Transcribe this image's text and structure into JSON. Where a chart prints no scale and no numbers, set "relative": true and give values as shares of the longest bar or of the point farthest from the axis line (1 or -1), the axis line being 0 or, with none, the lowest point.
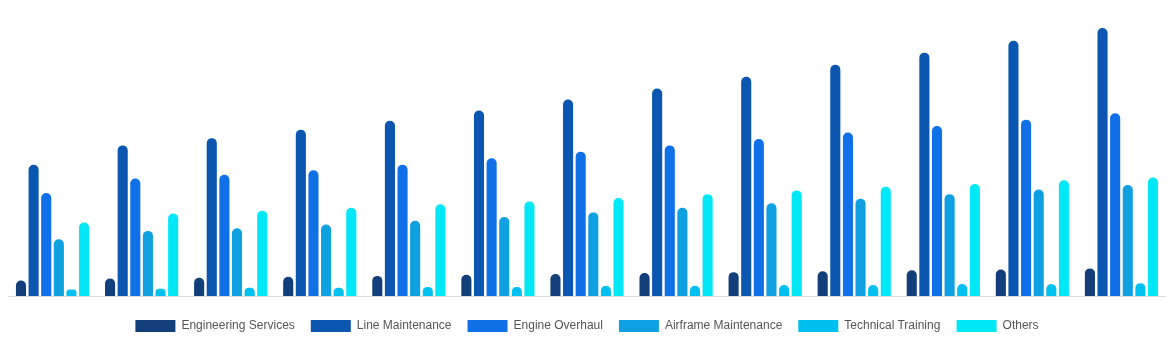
{
  "chart_data": {
    "type": "bar",
    "relative": true,
    "legend": "bottom",
    "categories": [
      null,
      null,
      null,
      null,
      null,
      null,
      null,
      null,
      null,
      null,
      null,
      null,
      null
    ],
    "series": [
      {
        "name": "Engineering Services",
        "color": "#123f7a",
        "values": [
          0.058,
          0.065,
          0.068,
          0.072,
          0.075,
          0.079,
          0.082,
          0.086,
          0.089,
          0.092,
          0.096,
          0.099,
          0.103
        ]
      },
      {
        "name": "Line Maintenance",
        "color": "#0a56b0",
        "values": [
          0.49,
          0.562,
          0.589,
          0.62,
          0.654,
          0.692,
          0.733,
          0.774,
          0.818,
          0.863,
          0.908,
          0.952,
          1
        ]
      },
      {
        "name": "Engine Overhaul",
        "color": "#1070e8",
        "values": [
          0.384,
          0.438,
          0.452,
          0.469,
          0.49,
          0.514,
          0.538,
          0.562,
          0.586,
          0.61,
          0.634,
          0.658,
          0.682
        ]
      },
      {
        "name": "Airframe Maintenance",
        "color": "#0ea0e0",
        "values": [
          0.212,
          0.243,
          0.253,
          0.267,
          0.281,
          0.295,
          0.312,
          0.329,
          0.346,
          0.363,
          0.38,
          0.397,
          0.414
        ]
      },
      {
        "name": "Technical Training",
        "color": "#00c0f0",
        "values": [
          0.024,
          0.027,
          0.031,
          0.031,
          0.034,
          0.034,
          0.038,
          0.038,
          0.041,
          0.041,
          0.045,
          0.045,
          0.048
        ]
      },
      {
        "name": "Others",
        "color": "#00e8f5",
        "values": [
          0.274,
          0.308,
          0.318,
          0.329,
          0.342,
          0.353,
          0.366,
          0.38,
          0.394,
          0.408,
          0.418,
          0.432,
          0.442
        ]
      }
    ]
  }
}
